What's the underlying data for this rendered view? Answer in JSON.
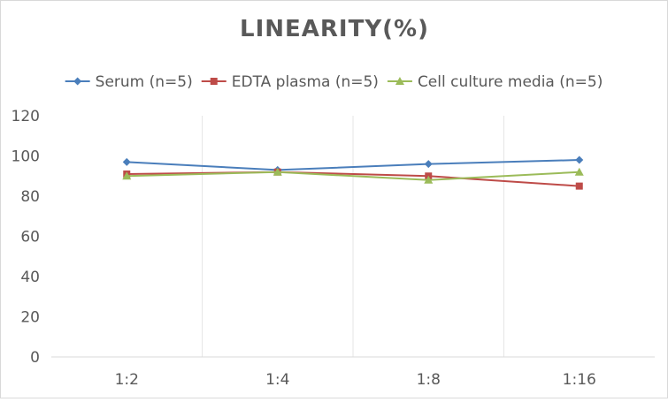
{
  "chart_data": {
    "type": "line",
    "title": "LINEARITY(%)",
    "xlabel": "",
    "ylabel": "",
    "categories": [
      "1:2",
      "1:4",
      "1:8",
      "1:16"
    ],
    "ylim": [
      0,
      120
    ],
    "yticks": [
      0,
      20,
      40,
      60,
      80,
      100,
      120
    ],
    "grid": "vertical category lines",
    "legend_position": "top",
    "series": [
      {
        "name": "Serum (n=5)",
        "values": [
          97,
          93,
          96,
          98
        ],
        "color": "#4a7ebb",
        "marker": "diamond"
      },
      {
        "name": "EDTA plasma (n=5)",
        "values": [
          91,
          92,
          90,
          85
        ],
        "color": "#be4b48",
        "marker": "square"
      },
      {
        "name": "Cell culture media (n=5)",
        "values": [
          90,
          92,
          88,
          92
        ],
        "color": "#9bbb59",
        "marker": "triangle"
      }
    ]
  }
}
